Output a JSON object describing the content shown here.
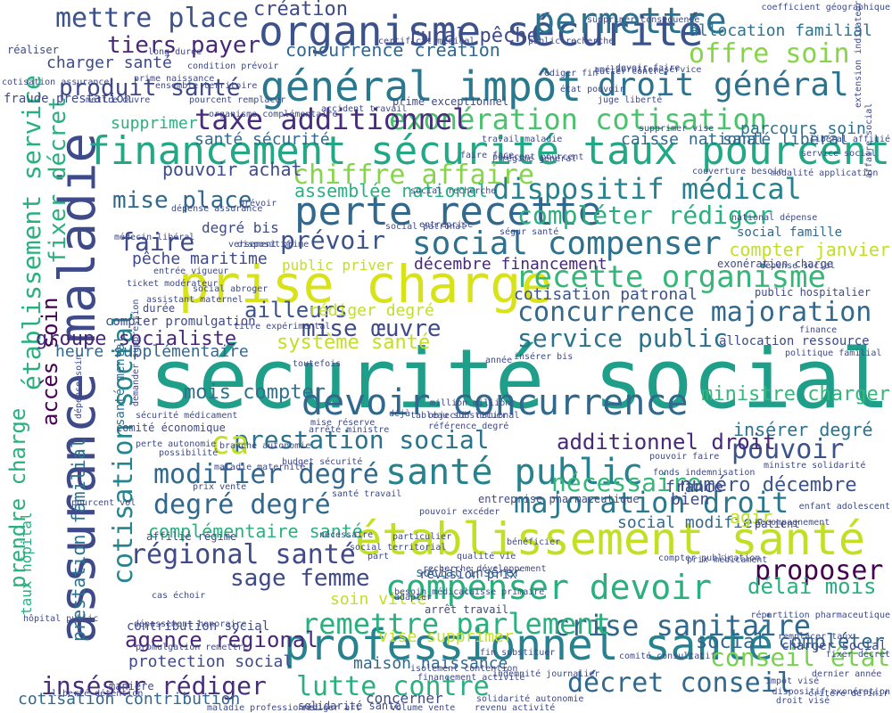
{
  "words": [
    {
      "text": "sécurité social",
      "color": "#1f9e89"
    },
    {
      "text": "assurance maladie",
      "color": "#3e4a89"
    },
    {
      "text": "prise charge",
      "color": "#d8e219"
    },
    {
      "text": "établissement santé",
      "color": "#c2df23"
    },
    {
      "text": "professionnel santé",
      "color": "#26828e"
    },
    {
      "text": "organisme sécurité",
      "color": "#3b528b"
    },
    {
      "text": "général impôt",
      "color": "#2a788e"
    },
    {
      "text": "financement sécurité taux pourcent",
      "color": "#22a884"
    },
    {
      "text": "perte recette",
      "color": "#31688e"
    },
    {
      "text": "social compenser",
      "color": "#2c728e"
    },
    {
      "text": "santé public",
      "color": "#26828e"
    },
    {
      "text": "devoir concurrence",
      "color": "#31688e"
    },
    {
      "text": "compenser devoir",
      "color": "#2ab07f"
    },
    {
      "text": "permettre",
      "color": "#2c728e"
    },
    {
      "text": "droit général",
      "color": "#2c728e"
    },
    {
      "text": "recette organisme",
      "color": "#35b779"
    },
    {
      "text": "exonération cotisation",
      "color": "#4ac16d"
    },
    {
      "text": "dispositif médical",
      "color": "#26828e"
    },
    {
      "text": "compléter rédiger",
      "color": "#2ab07f"
    },
    {
      "text": "concurrence majoration",
      "color": "#31688e"
    },
    {
      "text": "service public",
      "color": "#2c728e"
    },
    {
      "text": "majoration droit",
      "color": "#2a788e"
    },
    {
      "text": "crise sanitaire",
      "color": "#31688e"
    },
    {
      "text": "lutte contre",
      "color": "#2ab07f"
    },
    {
      "text": "décret conseil",
      "color": "#31688e"
    },
    {
      "text": "conseil état",
      "color": "#7ad151"
    },
    {
      "text": "remettre parlement",
      "color": "#2ab07f"
    },
    {
      "text": "taxe additionnel",
      "color": "#472d7b"
    },
    {
      "text": "chiffre affaire",
      "color": "#86d549"
    },
    {
      "text": "mettre place",
      "color": "#3b528b"
    },
    {
      "text": "tiers payer",
      "color": "#482878"
    },
    {
      "text": "produit santé",
      "color": "#3e4a89"
    },
    {
      "text": "offre soin",
      "color": "#86d549"
    },
    {
      "text": "pouvoir",
      "color": "#3b528b"
    },
    {
      "text": "modifier degré",
      "color": "#31688e"
    },
    {
      "text": "degré degré",
      "color": "#31688e"
    },
    {
      "text": "régional santé",
      "color": "#3e4a89"
    },
    {
      "text": "proposer",
      "color": "#440154"
    },
    {
      "text": "inséser rédiger",
      "color": "#472d7b"
    },
    {
      "text": "agence régional",
      "color": "#482878"
    },
    {
      "text": "cotisation social",
      "color": "#25858e"
    },
    {
      "text": "établissement service",
      "color": "#2ab07f"
    },
    {
      "text": "fixer décret",
      "color": "#2ab07f"
    },
    {
      "text": "accès soin",
      "color": "#440154"
    },
    {
      "text": "prendre charge",
      "color": "#2ab07f"
    },
    {
      "text": "mise place",
      "color": "#31688e"
    },
    {
      "text": "faire",
      "color": "#3e4a89"
    },
    {
      "text": "prévoir",
      "color": "#3b528b"
    },
    {
      "text": "groupe socialiste",
      "color": "#482878"
    },
    {
      "text": "mise œuvre",
      "color": "#3e4a89"
    },
    {
      "text": "prestation social",
      "color": "#2c728e"
    },
    {
      "text": "additionnel droit",
      "color": "#482878"
    },
    {
      "text": "sage femme",
      "color": "#3e4a89"
    },
    {
      "text": "nécessaire",
      "color": "#35b779"
    },
    {
      "text": "numéro décembre",
      "color": "#3b528b"
    },
    {
      "text": "délai mois",
      "color": "#2ab07f"
    },
    {
      "text": "social compléter",
      "color": "#31688e"
    },
    {
      "text": "rural pêche",
      "color": "#3e4a89"
    },
    {
      "text": "création",
      "color": "#3e4a89"
    },
    {
      "text": "concurrence création",
      "color": "#31688e"
    },
    {
      "text": "charger santé",
      "color": "#3e4a89"
    },
    {
      "text": "santé sécurité",
      "color": "#31688e"
    },
    {
      "text": "pouvoir achat",
      "color": "#3e4a89"
    },
    {
      "text": "ministre charger",
      "color": "#35b779"
    },
    {
      "text": "insérer degré",
      "color": "#2c728e"
    },
    {
      "text": "complémentaire santé",
      "color": "#2ab07f"
    },
    {
      "text": "protection social",
      "color": "#3e4a89"
    },
    {
      "text": "cotisation contribution",
      "color": "#31688e"
    },
    {
      "text": "ailleurs",
      "color": "#3b528b"
    },
    {
      "text": "mois compter",
      "color": "#2c728e"
    },
    {
      "text": "système santé",
      "color": "#c2df23"
    },
    {
      "text": "allocation familial",
      "color": "#2c728e"
    },
    {
      "text": "caisse national",
      "color": "#31688e"
    },
    {
      "text": "assemblée national",
      "color": "#2ab07f"
    },
    {
      "text": "compter janvier",
      "color": "#c2df23"
    },
    {
      "text": "cotisation patronal",
      "color": "#3b528b"
    },
    {
      "text": "décembre financement",
      "color": "#482878"
    },
    {
      "text": "pêche maritime",
      "color": "#3e4a89"
    },
    {
      "text": "rédiger degré",
      "color": "#c2df23"
    },
    {
      "text": "soin ville",
      "color": "#c2df23"
    },
    {
      "text": "vise supprimer",
      "color": "#c2df23"
    },
    {
      "text": "maison naissance",
      "color": "#31688e"
    },
    {
      "text": "prestation familial",
      "color": "#2c728e"
    },
    {
      "text": "social modifier",
      "color": "#31688e"
    },
    {
      "text": "agir",
      "color": "#c2df23"
    },
    {
      "text": "france",
      "color": "#3e4a89"
    },
    {
      "text": "bien",
      "color": "#3e4a89"
    },
    {
      "text": "ca",
      "color": "#c2df23"
    },
    {
      "text": "heure supplémentaire",
      "color": "#31688e"
    },
    {
      "text": "supprimer",
      "color": "#2ab07f"
    },
    {
      "text": "parcours soin",
      "color": "#2c728e"
    },
    {
      "text": "santé libéral",
      "color": "#31688e"
    },
    {
      "text": "degré bis",
      "color": "#3e4a89"
    },
    {
      "text": "social famille",
      "color": "#31688e"
    },
    {
      "text": "public priver",
      "color": "#c2df23"
    },
    {
      "text": "compter promulgation",
      "color": "#3e4a89"
    },
    {
      "text": "charger social",
      "color": "#3e4a89"
    },
    {
      "text": "contribution social",
      "color": "#3e4a89"
    },
    {
      "text": "concerner",
      "color": "#3e4a89"
    },
    {
      "text": "santé mental",
      "color": "#2c728e"
    },
    {
      "text": "taux hôpital",
      "color": "#2ab07f"
    },
    {
      "text": "allocation ressource",
      "color": "#3e4a89"
    },
    {
      "text": "exonération charge",
      "color": "#3e4a89"
    },
    {
      "text": "public hospitalier",
      "color": "#3e4a89"
    },
    {
      "text": "arrêt travail",
      "color": "#3e4a89"
    },
    {
      "text": "révision prix",
      "color": "#3e4a89"
    },
    {
      "text": "social insérer",
      "color": "#31688e"
    },
    {
      "text": "entreprise pharmaceutique",
      "color": "#3e4a89"
    },
    {
      "text": "comité économique",
      "color": "#3e4a89"
    },
    {
      "text": "affilié régime",
      "color": "#3e4a89"
    },
    {
      "text": "durée",
      "color": "#3e4a89"
    },
    {
      "text": "manière",
      "color": "#3e4a89"
    },
    {
      "text": "solidarité santé",
      "color": "#3e4a89"
    },
    {
      "text": "prime exceptionnel",
      "color": "#3e4a89"
    },
    {
      "text": "fraude prestation",
      "color": "#3e4a89"
    },
    {
      "text": "réaliser",
      "color": "#3e4a89"
    },
    {
      "text": "patient",
      "color": "#3e4a89"
    },
    {
      "text": "maladie professionnel",
      "color": "#3e4a89"
    },
    {
      "text": "rédiger art",
      "color": "#3e4a89"
    },
    {
      "text": "volume vente",
      "color": "#3e4a89"
    },
    {
      "text": "revenu activité",
      "color": "#3e4a89"
    },
    {
      "text": "solidarité autonomie",
      "color": "#3e4a89"
    },
    {
      "text": "droit visé",
      "color": "#3e4a89"
    },
    {
      "text": "condition prévoir",
      "color": "#3e4a89"
    },
    {
      "text": "long durée",
      "color": "#3e4a89"
    },
    {
      "text": "perte autonomie",
      "color": "#3e4a89"
    },
    {
      "text": "branche autonomie",
      "color": "#3e4a89"
    },
    {
      "text": "certificat médical",
      "color": "#3e4a89"
    },
    {
      "text": "assistant maternel",
      "color": "#3e4a89"
    },
    {
      "text": "dispositif",
      "color": "#3e4a89"
    },
    {
      "text": "prévoir",
      "color": "#3e4a89"
    },
    {
      "text": "entreprise",
      "color": "#3e4a89"
    },
    {
      "text": "médecin libéral",
      "color": "#3e4a89"
    },
    {
      "text": "ticket modérateur",
      "color": "#3e4a89"
    },
    {
      "text": "dépassement honoraire",
      "color": "#3e4a89"
    },
    {
      "text": "cas échoir",
      "color": "#3e4a89"
    },
    {
      "text": "national dépense",
      "color": "#3e4a89"
    },
    {
      "text": "titre expérimental",
      "color": "#3e4a89"
    },
    {
      "text": "social patronal",
      "color": "#3e4a89"
    },
    {
      "text": "prime naissance",
      "color": "#3e4a89"
    },
    {
      "text": "ségur santé",
      "color": "#3e4a89"
    },
    {
      "text": "finance",
      "color": "#3e4a89"
    },
    {
      "text": "dépense social",
      "color": "#3e4a89"
    },
    {
      "text": "politique familial",
      "color": "#3e4a89"
    },
    {
      "text": "service social",
      "color": "#3e4a89"
    },
    {
      "text": "modalité application",
      "color": "#3e4a89"
    },
    {
      "text": "juge liberté",
      "color": "#3e4a89"
    },
    {
      "text": "supprimer consequence",
      "color": "#3e4a89"
    },
    {
      "text": "mettre œuvre",
      "color": "#3e4a89"
    },
    {
      "text": "pourcent remplacer",
      "color": "#3e4a89"
    },
    {
      "text": "pourcent vol",
      "color": "#3e4a89"
    },
    {
      "text": "hôpital public",
      "color": "#3e4a89"
    },
    {
      "text": "dépense assurance",
      "color": "#3e4a89"
    },
    {
      "text": "année",
      "color": "#3e4a89"
    },
    {
      "text": "référence degré",
      "color": "#3e4a89"
    },
    {
      "text": "objectif national",
      "color": "#3e4a89"
    },
    {
      "text": "million million",
      "color": "#3e4a89"
    },
    {
      "text": "tableau substituer",
      "color": "#3e4a89"
    },
    {
      "text": "déjà",
      "color": "#3e4a89"
    },
    {
      "text": "arrêté ministre",
      "color": "#3e4a89"
    },
    {
      "text": "budget sécurité",
      "color": "#3e4a89"
    },
    {
      "text": "pouvoir faire",
      "color": "#3e4a89"
    },
    {
      "text": "fonds indemnisation",
      "color": "#3e4a89"
    },
    {
      "text": "ministre solidarité",
      "color": "#3e4a89"
    },
    {
      "text": "fixer décret",
      "color": "#3e4a89"
    },
    {
      "text": "répartition pharmaceutique",
      "color": "#3e4a89"
    },
    {
      "text": "remplacer taux",
      "color": "#3e4a89"
    },
    {
      "text": "impôt visé",
      "color": "#3e4a89"
    },
    {
      "text": "prix médicament",
      "color": "#3e4a89"
    },
    {
      "text": "caisse primaire",
      "color": "#3e4a89"
    },
    {
      "text": "adapter",
      "color": "#3e4a89"
    },
    {
      "text": "besoin médical",
      "color": "#3e4a89"
    },
    {
      "text": "isolement contention",
      "color": "#3e4a89"
    },
    {
      "text": "financement activité",
      "color": "#3e4a89"
    },
    {
      "text": "indemnité journalier",
      "color": "#3e4a89"
    },
    {
      "text": "fin substituer",
      "color": "#3e4a89"
    },
    {
      "text": "comité consultatif",
      "color": "#3e4a89"
    },
    {
      "text": "liberté détention",
      "color": "#3e4a89"
    },
    {
      "text": "promulgation remettre",
      "color": "#3e4a89"
    },
    {
      "text": "dispositif exonération",
      "color": "#3e4a89"
    },
    {
      "text": "dernier année",
      "color": "#3e4a89"
    },
    {
      "text": "critère définir",
      "color": "#3e4a89"
    },
    {
      "text": "dépense soin",
      "color": "#3e4a89"
    },
    {
      "text": "supprimer vise",
      "color": "#3e4a89"
    },
    {
      "text": "social recherche",
      "color": "#3e4a89"
    },
    {
      "text": "public recherche",
      "color": "#3e4a89"
    },
    {
      "text": "coefficient géographique",
      "color": "#3e4a89"
    },
    {
      "text": "cotisation assurance",
      "color": "#3e4a89"
    },
    {
      "text": "accident travail",
      "color": "#3e4a89"
    },
    {
      "text": "ensemble territoire",
      "color": "#3e4a89"
    },
    {
      "text": "organisme complémentaire",
      "color": "#3e4a89"
    },
    {
      "text": "état pouvoir",
      "color": "#3e4a89"
    },
    {
      "text": "amélioration service",
      "color": "#3e4a89"
    },
    {
      "text": "lutter contre",
      "color": "#3e4a89"
    },
    {
      "text": "devoir faire",
      "color": "#3e4a89"
    },
    {
      "text": "régime général",
      "color": "#3e4a89"
    },
    {
      "text": "travail maladie",
      "color": "#3e4a89"
    },
    {
      "text": "faire face",
      "color": "#3e4a89"
    },
    {
      "text": "pourcent pourcent",
      "color": "#3e4a89"
    },
    {
      "text": "couverture besoin",
      "color": "#3e4a89"
    },
    {
      "text": "entrée vigueur",
      "color": "#3e4a89"
    },
    {
      "text": "social abroger",
      "color": "#3e4a89"
    },
    {
      "text": "toutefois",
      "color": "#3e4a89"
    },
    {
      "text": "insérer bis",
      "color": "#3e4a89"
    },
    {
      "text": "sécurité médicament",
      "color": "#3e4a89"
    },
    {
      "text": "demander suppression",
      "color": "#3e4a89"
    },
    {
      "text": "possibilité",
      "color": "#3e4a89"
    },
    {
      "text": "versement prime",
      "color": "#3e4a89"
    },
    {
      "text": "prix vente",
      "color": "#3e4a89"
    },
    {
      "text": "bénéficier",
      "color": "#3e4a89"
    },
    {
      "text": "compter publication",
      "color": "#3e4a89"
    },
    {
      "text": "particulier",
      "color": "#3e4a89"
    },
    {
      "text": "mise réserve",
      "color": "#3e4a89"
    },
    {
      "text": "accompagnement",
      "color": "#3e4a89"
    },
    {
      "text": "santé travail",
      "color": "#3e4a89"
    },
    {
      "text": "recherche développement",
      "color": "#3e4a89"
    },
    {
      "text": "affaire social",
      "color": "#3e4a89"
    },
    {
      "text": "part",
      "color": "#3e4a89"
    },
    {
      "text": "qualité vie",
      "color": "#3e4a89"
    },
    {
      "text": "libéral affilié",
      "color": "#3e4a89"
    },
    {
      "text": "extension indicateur",
      "color": "#3e4a89"
    },
    {
      "text": "rédiger fin",
      "color": "#3e4a89"
    },
    {
      "text": "maladie maternité",
      "color": "#3e4a89"
    },
    {
      "text": "pouvoir excéder",
      "color": "#3e4a89"
    },
    {
      "text": "social territorial",
      "color": "#3e4a89"
    },
    {
      "text": "enfant adolescent",
      "color": "#3e4a89"
    },
    {
      "text": "nécessaire",
      "color": "#3e4a89"
    },
    {
      "text": "unique",
      "color": "#3e4a89"
    },
    {
      "text": "définir",
      "color": "#3e4a89"
    },
    {
      "text": "français",
      "color": "#3e4a89"
    },
    {
      "text": "uniquement",
      "color": "#3e4a89"
    }
  ]
}
